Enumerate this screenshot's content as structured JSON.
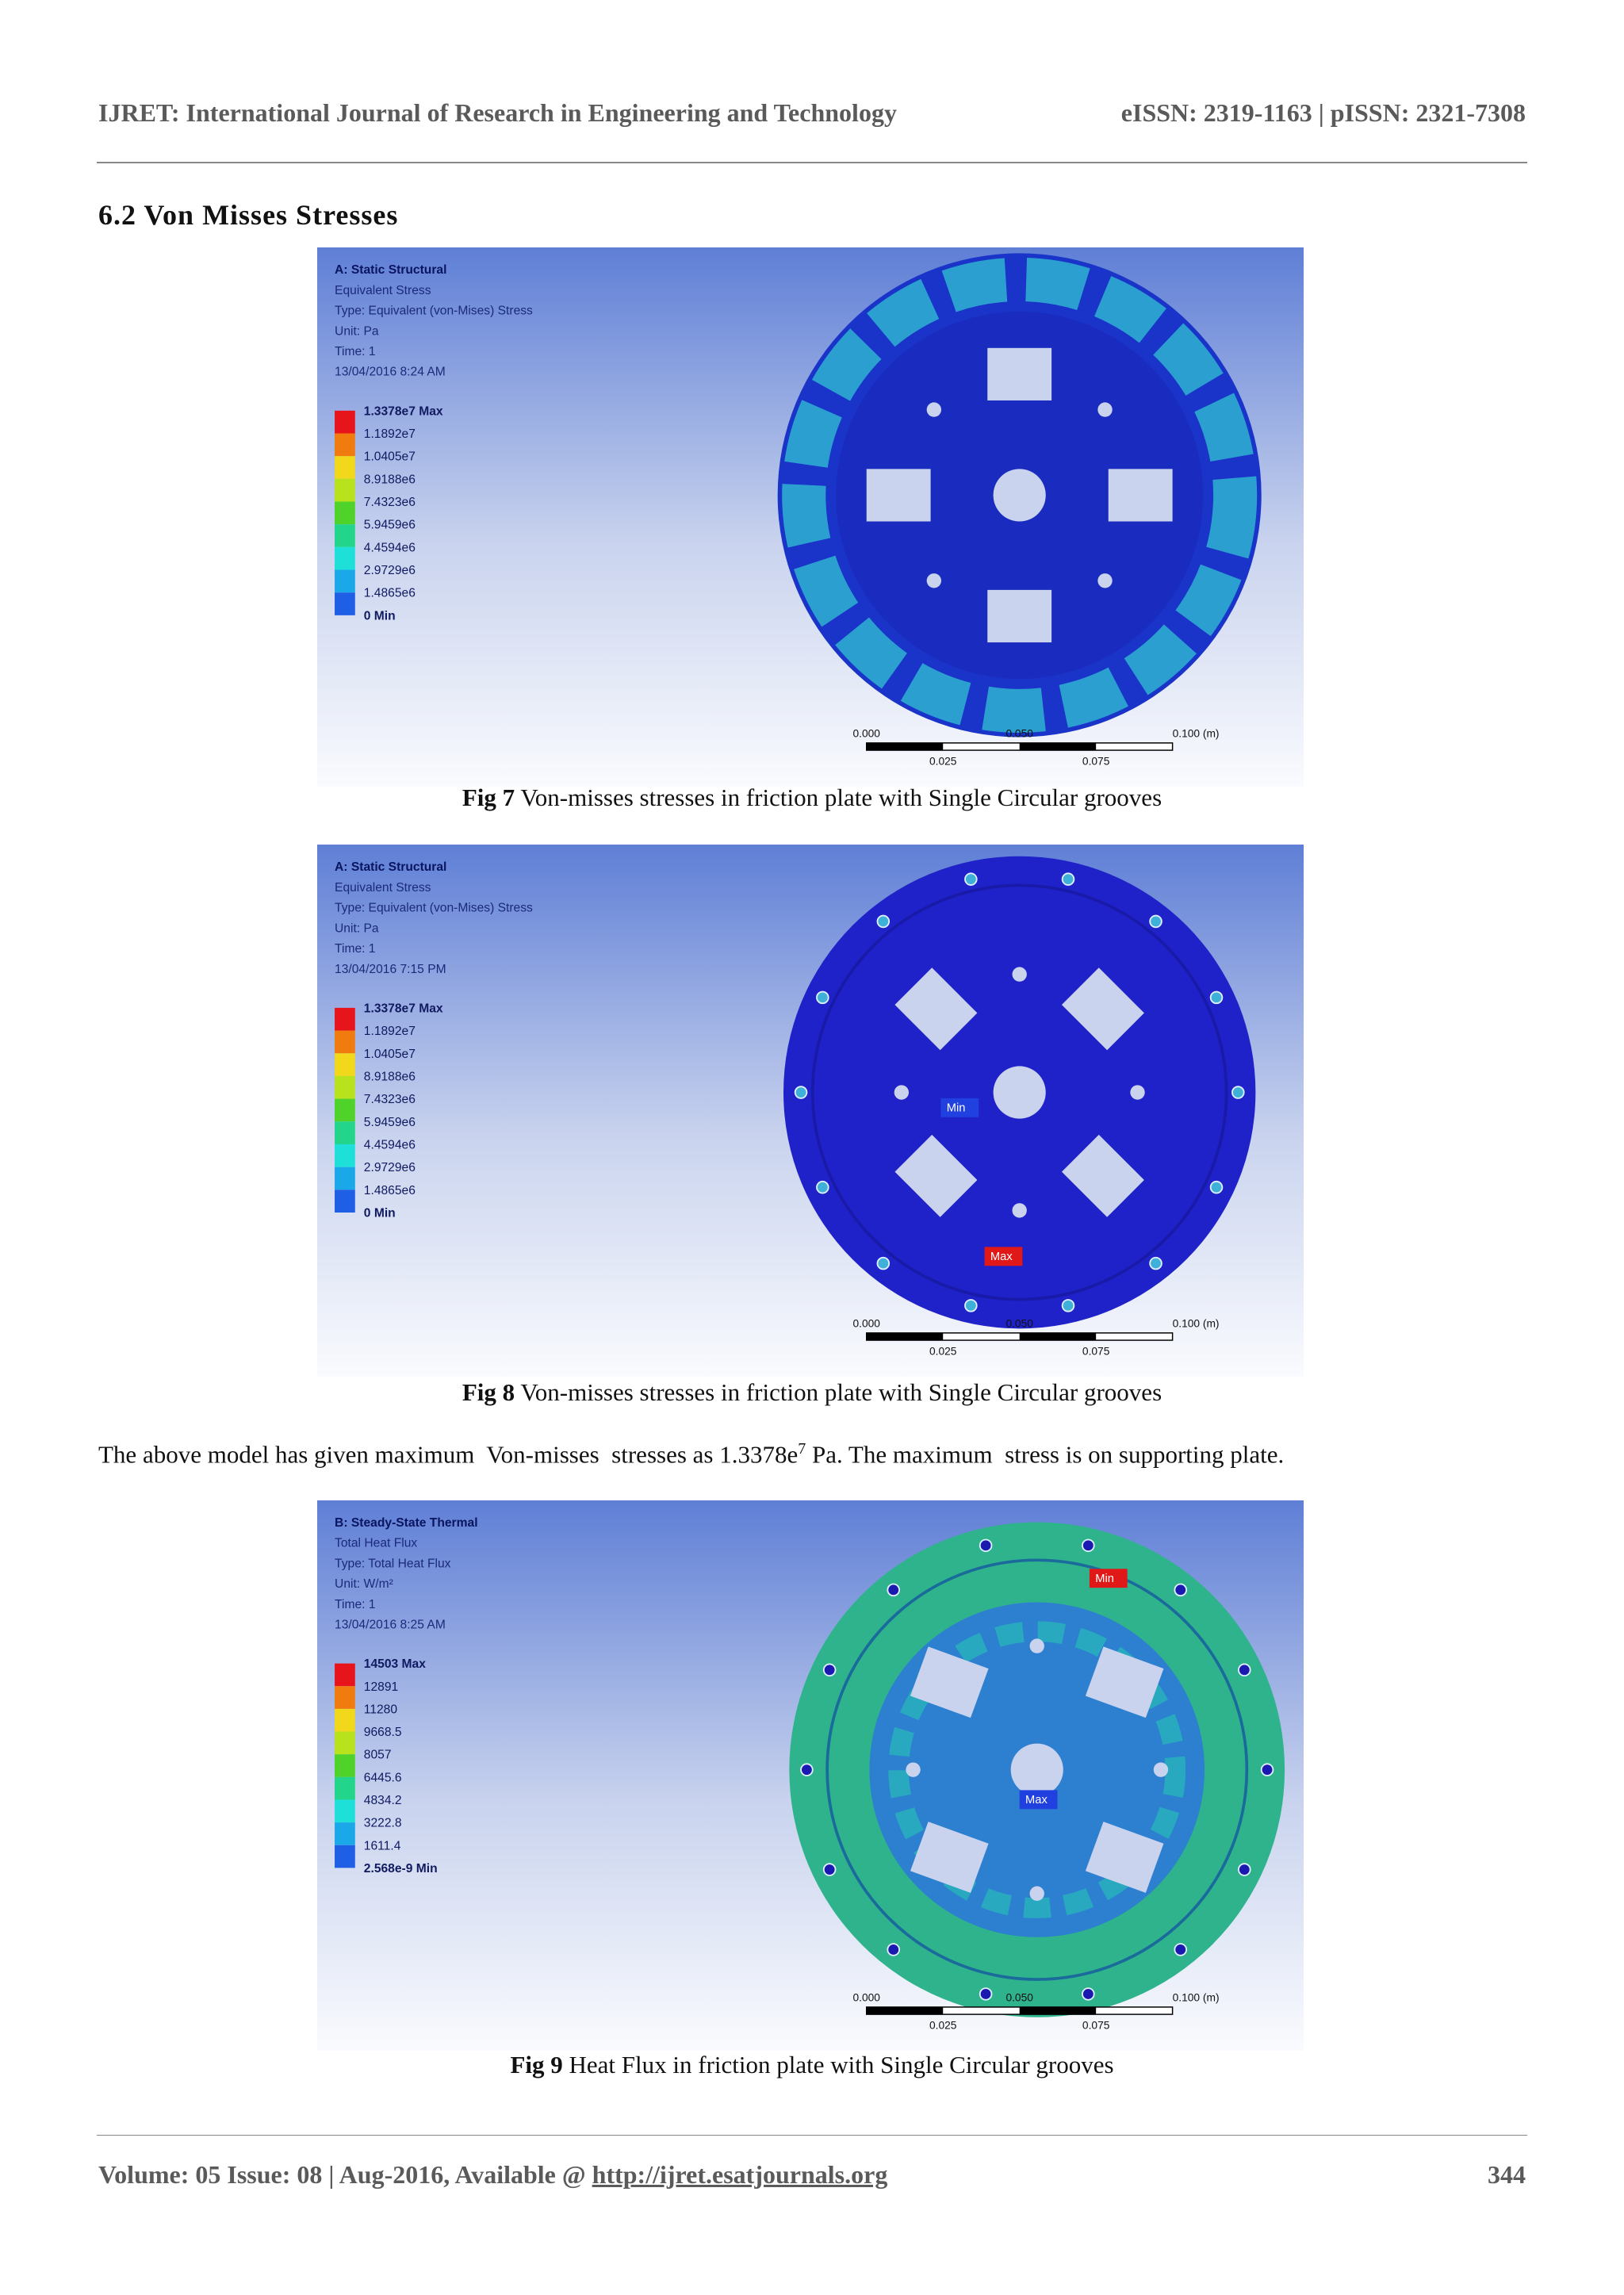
{
  "header": {
    "journal": "IJRET: International Journal of Research in Engineering and Technology",
    "issn": "eISSN: 2319-1163 | pISSN: 2321-7308"
  },
  "section_heading": "6.2 Von Misses Stresses",
  "figures": [
    {
      "info": [
        "A: Static Structural",
        "Equivalent Stress",
        "Type: Equivalent (von-Mises) Stress",
        "Unit: Pa",
        "Time: 1",
        "13/04/2016 8:24 AM"
      ],
      "legend": [
        "1.3378e7 Max",
        "1.1892e7",
        "1.0405e7",
        "8.9188e6",
        "7.4323e6",
        "5.9459e6",
        "4.4594e6",
        "2.9729e6",
        "1.4865e6",
        "0 Min"
      ],
      "scale_top": [
        "0.000",
        "0.050",
        "0.100 (m)"
      ],
      "scale_bottom": [
        "0.025",
        "0.075"
      ],
      "tags": [],
      "caption_label": "Fig 7",
      "caption": "Von-misses stresses in friction plate with Single Circular grooves"
    },
    {
      "info": [
        "A: Static Structural",
        "Equivalent Stress",
        "Type: Equivalent (von-Mises) Stress",
        "Unit: Pa",
        "Time: 1",
        "13/04/2016 7:15 PM"
      ],
      "legend": [
        "1.3378e7 Max",
        "1.1892e7",
        "1.0405e7",
        "8.9188e6",
        "7.4323e6",
        "5.9459e6",
        "4.4594e6",
        "2.9729e6",
        "1.4865e6",
        "0 Min"
      ],
      "scale_top": [
        "0.000",
        "0.050",
        "0.100 (m)"
      ],
      "scale_bottom": [
        "0.025",
        "0.075"
      ],
      "tags": [
        "Min",
        "Max"
      ],
      "caption_label": "Fig 8",
      "caption": "Von-misses stresses in friction plate with Single Circular grooves"
    },
    {
      "info": [
        "B: Steady-State Thermal",
        "Total Heat Flux",
        "Type: Total Heat Flux",
        "Unit: W/m²",
        "Time: 1",
        "13/04/2016 8:25 AM"
      ],
      "legend": [
        "14503 Max",
        "12891",
        "11280",
        "9668.5",
        "8057",
        "6445.6",
        "4834.2",
        "3222.8",
        "1611.4",
        "2.568e-9 Min"
      ],
      "scale_top": [
        "0.000",
        "0.050",
        "0.100 (m)"
      ],
      "scale_bottom": [
        "0.025",
        "0.075"
      ],
      "tags": [
        "Max",
        "Min"
      ],
      "caption_label": "Fig 9",
      "caption": "Heat Flux in friction plate with Single Circular grooves"
    }
  ],
  "paragraph": {
    "before": "The above model has given maximum  Von-misses  stresses as 1.3378e",
    "exponent": "7",
    "after": " Pa. The maximum  stress is on supporting plate."
  },
  "footer": {
    "text": "Volume: 05 Issue: 08 | Aug-2016, Available @ ",
    "link": "http://ijret.esatjournals.org",
    "page": "344"
  }
}
